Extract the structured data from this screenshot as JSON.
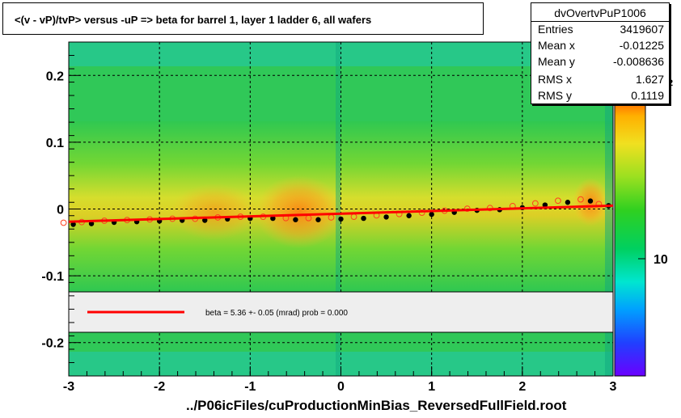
{
  "chart_data": {
    "type": "heatmap",
    "title": "<(v - vP)/tvP>  versus  -uP => beta for barrel 1, layer 1 ladder 6, all wafers",
    "xlabel": "../P06icFiles/cuProductionMinBias_ReversedFullField.root",
    "ylabel": "",
    "xlim": [
      -3,
      3
    ],
    "ylim": [
      -0.25,
      0.25
    ],
    "x_ticks": [
      "-3",
      "-2",
      "-1",
      "0",
      "1",
      "2",
      "3"
    ],
    "y_ticks": [
      "0.2",
      "0.1",
      "0",
      "-0.1",
      "-0.2"
    ],
    "grid": true,
    "colorbar": {
      "label": "10",
      "top_fragment": "2"
    },
    "stats": {
      "name": "dvOvertvPuP1006",
      "rows": [
        {
          "key": "Entries",
          "value": "3419607"
        },
        {
          "key": "Mean x",
          "value": "-0.01225"
        },
        {
          "key": "Mean y",
          "value": "-0.008636"
        },
        {
          "key": "RMS x",
          "value": "1.627"
        },
        {
          "key": "RMS y",
          "value": "0.1119"
        }
      ]
    },
    "fit_legend": "beta =    5.36 +-  0.05 (mrad) prob = 0.000",
    "series": [
      {
        "name": "profile",
        "x": [
          -2.95,
          -2.75,
          -2.5,
          -2.25,
          -2.0,
          -1.75,
          -1.5,
          -1.25,
          -1.0,
          -0.75,
          -0.5,
          -0.25,
          0.0,
          0.25,
          0.5,
          0.75,
          1.0,
          1.25,
          1.5,
          1.75,
          2.0,
          2.25,
          2.5,
          2.75,
          2.95
        ],
        "y": [
          -0.023,
          -0.022,
          -0.02,
          -0.019,
          -0.018,
          -0.017,
          -0.017,
          -0.015,
          -0.014,
          -0.014,
          -0.016,
          -0.016,
          -0.015,
          -0.014,
          -0.012,
          -0.01,
          -0.008,
          -0.005,
          -0.002,
          -0.001,
          0.002,
          0.006,
          0.01,
          0.012,
          0.005
        ]
      },
      {
        "name": "fit",
        "x": [
          -3,
          3
        ],
        "y": [
          -0.019,
          0.005
        ]
      }
    ]
  }
}
